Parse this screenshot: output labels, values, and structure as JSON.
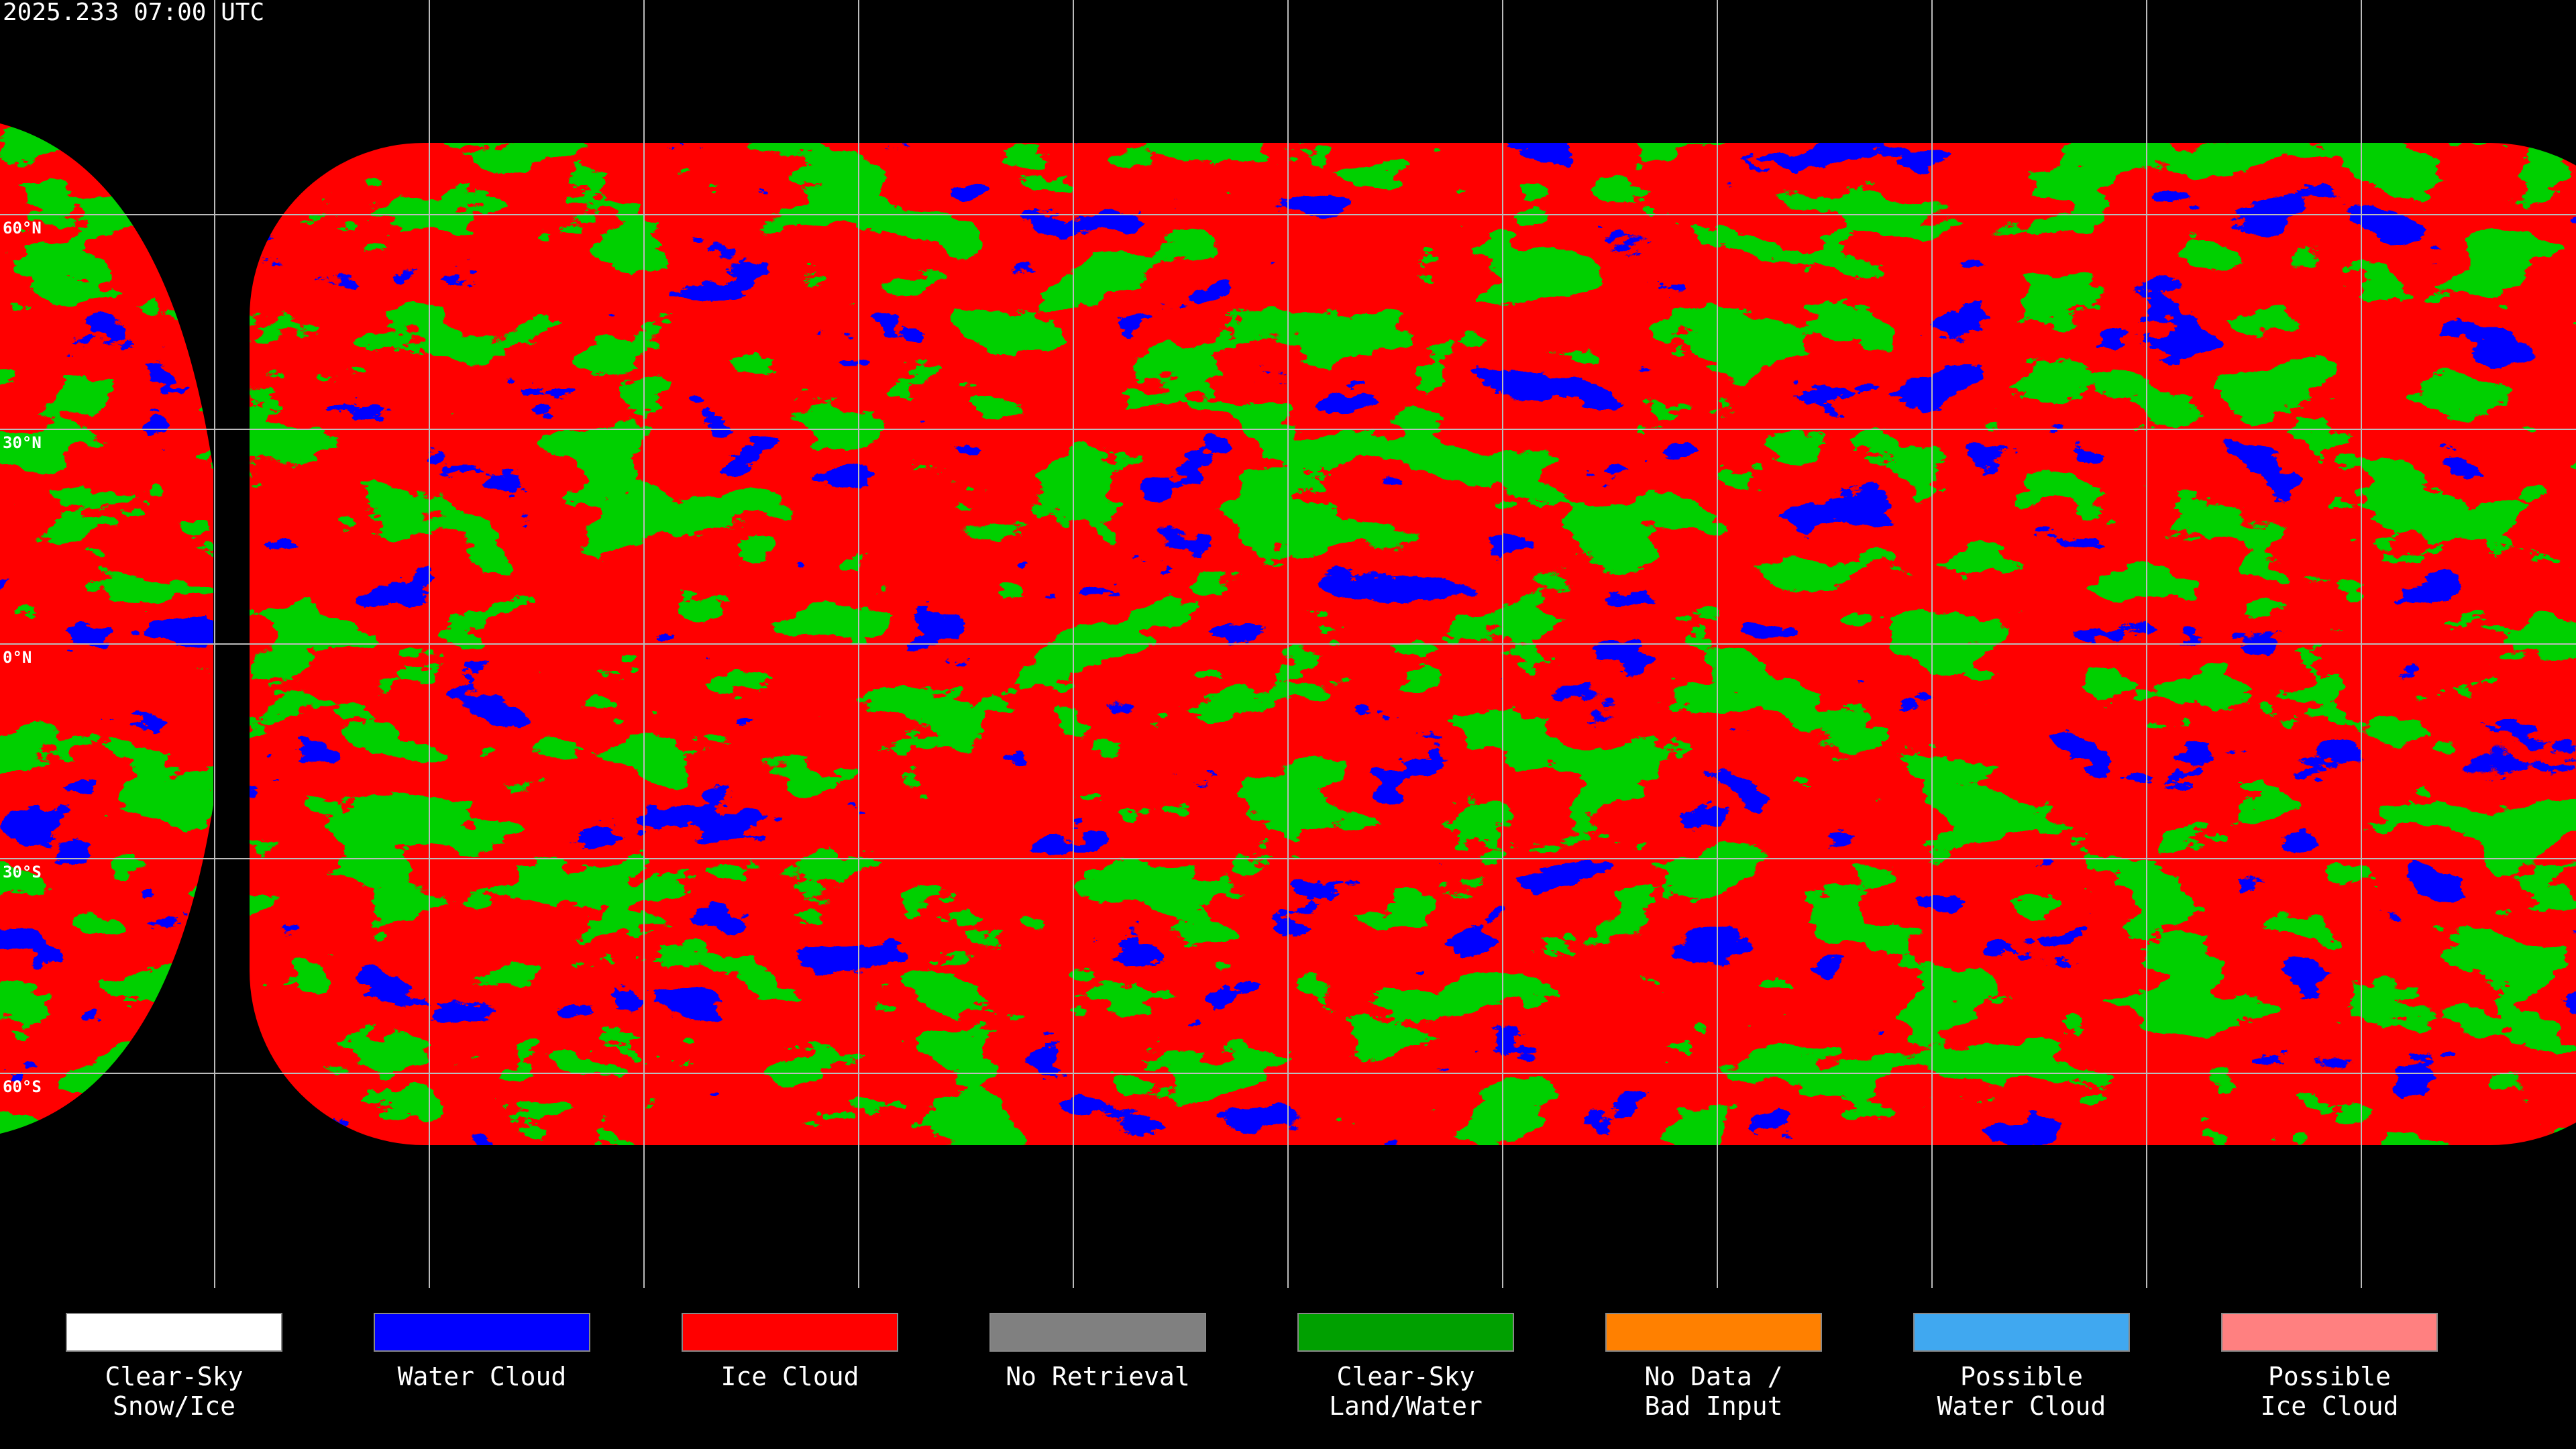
{
  "header": {
    "timestamp": "2025.233 07:00 UTC"
  },
  "map": {
    "ylim": [
      90,
      -90
    ],
    "yticks": [
      {
        "value": 60,
        "label": "60°N"
      },
      {
        "value": 30,
        "label": "30°N"
      },
      {
        "value": 0,
        "label": "0°N"
      },
      {
        "value": -30,
        "label": "30°S"
      },
      {
        "value": -60,
        "label": "60°S"
      }
    ],
    "grid": true
  },
  "legend": {
    "items": [
      {
        "label": "Clear-Sky\nSnow/Ice",
        "color": "#ffffff"
      },
      {
        "label": "Water Cloud",
        "color": "#0000ff"
      },
      {
        "label": "Ice Cloud",
        "color": "#ff0000"
      },
      {
        "label": "No Retrieval",
        "color": "#808080"
      },
      {
        "label": "Clear-Sky\nLand/Water",
        "color": "#00a000"
      },
      {
        "label": "No Data /\nBad Input",
        "color": "#ff8000"
      },
      {
        "label": "Possible\nWater Cloud",
        "color": "#40a8f0"
      },
      {
        "label": "Possible\nIce Cloud",
        "color": "#ff8080"
      }
    ]
  }
}
